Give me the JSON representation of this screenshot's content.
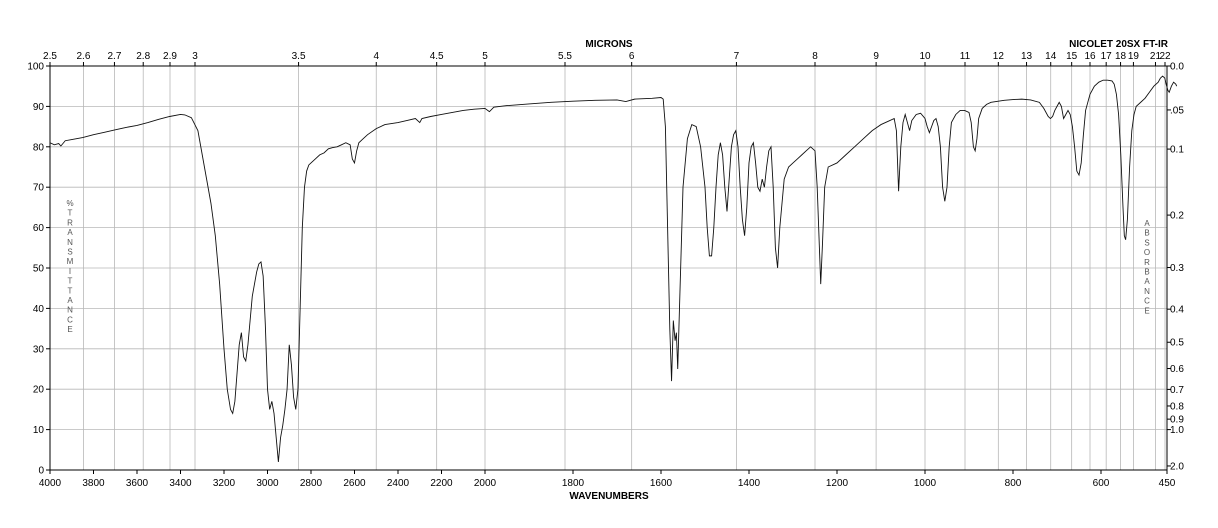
{
  "header": {
    "instrument": "NICOLET 20SX FT-IR"
  },
  "chart_data": {
    "type": "line",
    "top_axis_label": "MICRONS",
    "xlabel": "WAVENUMBERS",
    "left_axis_vertical_label": "%TRANSMITTANCE",
    "right_axis_vertical_label": "ABSORBANCE",
    "xlim": [
      4000,
      450
    ],
    "ylim": [
      0,
      100
    ],
    "grid": true,
    "x_ticks": [
      4000,
      3800,
      3600,
      3400,
      3200,
      3000,
      2800,
      2600,
      2400,
      2200,
      2000,
      1800,
      1600,
      1400,
      1200,
      1000,
      800,
      600,
      450
    ],
    "y_ticks": [
      0,
      10,
      20,
      30,
      40,
      50,
      60,
      70,
      80,
      90,
      100
    ],
    "micron_ticks": [
      {
        "label": "2.5",
        "v": 2.5
      },
      {
        "label": "2.6",
        "v": 2.6
      },
      {
        "label": "2.7",
        "v": 2.7
      },
      {
        "label": "2.8",
        "v": 2.8
      },
      {
        "label": "2.9",
        "v": 2.9
      },
      {
        "label": "3",
        "v": 3
      },
      {
        "label": "3.5",
        "v": 3.5
      },
      {
        "label": "4",
        "v": 4
      },
      {
        "label": "4.5",
        "v": 4.5
      },
      {
        "label": "5",
        "v": 5
      },
      {
        "label": "5.5",
        "v": 5.5
      },
      {
        "label": "6",
        "v": 6
      },
      {
        "label": "7",
        "v": 7
      },
      {
        "label": "8",
        "v": 8
      },
      {
        "label": "9",
        "v": 9
      },
      {
        "label": "10",
        "v": 10
      },
      {
        "label": "11",
        "v": 11
      },
      {
        "label": "12",
        "v": 12
      },
      {
        "label": "13",
        "v": 13
      },
      {
        "label": "14",
        "v": 14
      },
      {
        "label": "15",
        "v": 15
      },
      {
        "label": "16",
        "v": 16
      },
      {
        "label": "17",
        "v": 17
      },
      {
        "label": "18",
        "v": 18
      },
      {
        "label": "19",
        "v": 19
      },
      {
        "label": "21",
        "v": 21
      },
      {
        "label": "22",
        "v": 22
      }
    ],
    "absorbance_ticks": [
      {
        "label": "0.0",
        "v": 0
      },
      {
        "label": ".05",
        "v": 0.05
      },
      {
        "label": "0.1",
        "v": 0.1
      },
      {
        "label": "0.2",
        "v": 0.2
      },
      {
        "label": "0.3",
        "v": 0.3
      },
      {
        "label": "0.4",
        "v": 0.4
      },
      {
        "label": "0.5",
        "v": 0.5
      },
      {
        "label": "0.6",
        "v": 0.6
      },
      {
        "label": "0.7",
        "v": 0.7
      },
      {
        "label": "0.8",
        "v": 0.8
      },
      {
        "label": "0.9",
        "v": 0.9
      },
      {
        "label": "1.0",
        "v": 1.0
      },
      {
        "label": "2.0",
        "v": 2.0
      }
    ],
    "series": [
      {
        "points": [
          [
            4000,
            81
          ],
          [
            3980,
            80.5
          ],
          [
            3960,
            80.8
          ],
          [
            3950,
            80.2
          ],
          [
            3930,
            81.5
          ],
          [
            3900,
            81.8
          ],
          [
            3850,
            82.3
          ],
          [
            3800,
            83
          ],
          [
            3750,
            83.6
          ],
          [
            3700,
            84.2
          ],
          [
            3650,
            84.8
          ],
          [
            3600,
            85.3
          ],
          [
            3550,
            86
          ],
          [
            3500,
            86.8
          ],
          [
            3450,
            87.5
          ],
          [
            3400,
            88
          ],
          [
            3380,
            87.9
          ],
          [
            3350,
            87.2
          ],
          [
            3320,
            84
          ],
          [
            3300,
            78
          ],
          [
            3280,
            72
          ],
          [
            3260,
            66
          ],
          [
            3240,
            58
          ],
          [
            3220,
            46
          ],
          [
            3200,
            30
          ],
          [
            3185,
            20
          ],
          [
            3170,
            15
          ],
          [
            3160,
            14
          ],
          [
            3150,
            17
          ],
          [
            3140,
            24
          ],
          [
            3130,
            31
          ],
          [
            3120,
            34
          ],
          [
            3110,
            28
          ],
          [
            3100,
            27
          ],
          [
            3090,
            31
          ],
          [
            3080,
            37
          ],
          [
            3070,
            43
          ],
          [
            3060,
            46
          ],
          [
            3050,
            49
          ],
          [
            3040,
            51
          ],
          [
            3030,
            51.5
          ],
          [
            3020,
            48
          ],
          [
            3010,
            36
          ],
          [
            3000,
            20
          ],
          [
            2990,
            15
          ],
          [
            2980,
            17
          ],
          [
            2970,
            14
          ],
          [
            2960,
            8
          ],
          [
            2950,
            2
          ],
          [
            2940,
            8
          ],
          [
            2930,
            11
          ],
          [
            2920,
            15
          ],
          [
            2910,
            20
          ],
          [
            2900,
            31
          ],
          [
            2890,
            26
          ],
          [
            2880,
            18
          ],
          [
            2870,
            15
          ],
          [
            2860,
            20
          ],
          [
            2850,
            40
          ],
          [
            2840,
            60
          ],
          [
            2830,
            70
          ],
          [
            2820,
            74
          ],
          [
            2810,
            75.5
          ],
          [
            2800,
            76
          ],
          [
            2780,
            77
          ],
          [
            2760,
            78
          ],
          [
            2740,
            78.5
          ],
          [
            2720,
            79.5
          ],
          [
            2700,
            79.8
          ],
          [
            2680,
            80
          ],
          [
            2660,
            80.5
          ],
          [
            2640,
            81
          ],
          [
            2620,
            80.5
          ],
          [
            2610,
            77
          ],
          [
            2600,
            76
          ],
          [
            2590,
            79
          ],
          [
            2580,
            81
          ],
          [
            2560,
            82
          ],
          [
            2540,
            83
          ],
          [
            2500,
            84.5
          ],
          [
            2460,
            85.5
          ],
          [
            2400,
            86
          ],
          [
            2360,
            86.5
          ],
          [
            2320,
            87
          ],
          [
            2300,
            86
          ],
          [
            2290,
            87
          ],
          [
            2250,
            87.5
          ],
          [
            2200,
            88
          ],
          [
            2150,
            88.5
          ],
          [
            2100,
            89
          ],
          [
            2050,
            89.3
          ],
          [
            2000,
            89.5
          ],
          [
            1990,
            88.7
          ],
          [
            1980,
            89.8
          ],
          [
            1950,
            90.2
          ],
          [
            1900,
            90.6
          ],
          [
            1850,
            91
          ],
          [
            1800,
            91.3
          ],
          [
            1750,
            91.5
          ],
          [
            1700,
            91.6
          ],
          [
            1680,
            91.2
          ],
          [
            1660,
            91.8
          ],
          [
            1620,
            92
          ],
          [
            1600,
            92.2
          ],
          [
            1595,
            91.8
          ],
          [
            1590,
            85
          ],
          [
            1585,
            60
          ],
          [
            1580,
            35
          ],
          [
            1576,
            22
          ],
          [
            1572,
            37
          ],
          [
            1568,
            32
          ],
          [
            1565,
            34
          ],
          [
            1562,
            25
          ],
          [
            1558,
            40
          ],
          [
            1550,
            70
          ],
          [
            1540,
            82
          ],
          [
            1530,
            85.5
          ],
          [
            1520,
            85
          ],
          [
            1510,
            80
          ],
          [
            1500,
            70
          ],
          [
            1495,
            60
          ],
          [
            1490,
            53
          ],
          [
            1485,
            53
          ],
          [
            1480,
            60
          ],
          [
            1475,
            70
          ],
          [
            1470,
            78
          ],
          [
            1465,
            81
          ],
          [
            1460,
            78
          ],
          [
            1455,
            70
          ],
          [
            1450,
            64
          ],
          [
            1445,
            72
          ],
          [
            1440,
            80
          ],
          [
            1435,
            83
          ],
          [
            1430,
            84
          ],
          [
            1425,
            80
          ],
          [
            1420,
            70
          ],
          [
            1415,
            62
          ],
          [
            1410,
            58
          ],
          [
            1405,
            65
          ],
          [
            1400,
            76
          ],
          [
            1395,
            80
          ],
          [
            1390,
            81
          ],
          [
            1385,
            76
          ],
          [
            1380,
            70
          ],
          [
            1375,
            69
          ],
          [
            1370,
            72
          ],
          [
            1365,
            70
          ],
          [
            1360,
            75
          ],
          [
            1355,
            79
          ],
          [
            1350,
            80
          ],
          [
            1345,
            70
          ],
          [
            1340,
            55
          ],
          [
            1335,
            50
          ],
          [
            1330,
            60
          ],
          [
            1320,
            72
          ],
          [
            1310,
            75
          ],
          [
            1300,
            76
          ],
          [
            1290,
            77
          ],
          [
            1280,
            78
          ],
          [
            1270,
            79
          ],
          [
            1260,
            80
          ],
          [
            1250,
            79
          ],
          [
            1245,
            70
          ],
          [
            1240,
            55
          ],
          [
            1237,
            46
          ],
          [
            1233,
            56
          ],
          [
            1228,
            70
          ],
          [
            1220,
            75
          ],
          [
            1200,
            76
          ],
          [
            1180,
            78
          ],
          [
            1160,
            80
          ],
          [
            1140,
            82
          ],
          [
            1120,
            84
          ],
          [
            1100,
            85.5
          ],
          [
            1080,
            86.5
          ],
          [
            1070,
            87
          ],
          [
            1065,
            84
          ],
          [
            1060,
            69
          ],
          [
            1055,
            80
          ],
          [
            1050,
            86
          ],
          [
            1045,
            88
          ],
          [
            1040,
            86
          ],
          [
            1035,
            84
          ],
          [
            1030,
            86.5
          ],
          [
            1020,
            88
          ],
          [
            1010,
            88.3
          ],
          [
            1000,
            87
          ],
          [
            995,
            85
          ],
          [
            990,
            83.5
          ],
          [
            985,
            85
          ],
          [
            980,
            86.5
          ],
          [
            975,
            87
          ],
          [
            970,
            85
          ],
          [
            965,
            80
          ],
          [
            960,
            70
          ],
          [
            955,
            66.5
          ],
          [
            950,
            70
          ],
          [
            945,
            80
          ],
          [
            940,
            86
          ],
          [
            930,
            88
          ],
          [
            920,
            89
          ],
          [
            910,
            89
          ],
          [
            900,
            88.5
          ],
          [
            895,
            86
          ],
          [
            890,
            80
          ],
          [
            886,
            79
          ],
          [
            882,
            82
          ],
          [
            878,
            87
          ],
          [
            870,
            89.5
          ],
          [
            860,
            90.5
          ],
          [
            850,
            91
          ],
          [
            820,
            91.5
          ],
          [
            800,
            91.7
          ],
          [
            780,
            91.8
          ],
          [
            760,
            91.6
          ],
          [
            740,
            91
          ],
          [
            730,
            89.5
          ],
          [
            720,
            87.5
          ],
          [
            715,
            87
          ],
          [
            710,
            87.5
          ],
          [
            705,
            89
          ],
          [
            700,
            90
          ],
          [
            695,
            91
          ],
          [
            690,
            90
          ],
          [
            685,
            87
          ],
          [
            680,
            88
          ],
          [
            675,
            89
          ],
          [
            670,
            88
          ],
          [
            665,
            85
          ],
          [
            660,
            80
          ],
          [
            655,
            74
          ],
          [
            650,
            73
          ],
          [
            645,
            76
          ],
          [
            640,
            83
          ],
          [
            635,
            89
          ],
          [
            625,
            93
          ],
          [
            615,
            95
          ],
          [
            605,
            96
          ],
          [
            595,
            96.5
          ],
          [
            585,
            96.5
          ],
          [
            575,
            96.3
          ],
          [
            570,
            95.5
          ],
          [
            565,
            93
          ],
          [
            560,
            88
          ],
          [
            555,
            78
          ],
          [
            550,
            65
          ],
          [
            547,
            58
          ],
          [
            544,
            57
          ],
          [
            540,
            62
          ],
          [
            535,
            75
          ],
          [
            530,
            84
          ],
          [
            525,
            88
          ],
          [
            520,
            90
          ],
          [
            510,
            91
          ],
          [
            500,
            92
          ],
          [
            490,
            93.5
          ],
          [
            480,
            95
          ],
          [
            470,
            96
          ],
          [
            465,
            97
          ],
          [
            460,
            97.5
          ],
          [
            455,
            97
          ],
          [
            452,
            95.5
          ],
          [
            448,
            94
          ],
          [
            445,
            93.5
          ],
          [
            440,
            95
          ],
          [
            435,
            96
          ],
          [
            430,
            95.5
          ],
          [
            428,
            95
          ]
        ]
      }
    ]
  }
}
